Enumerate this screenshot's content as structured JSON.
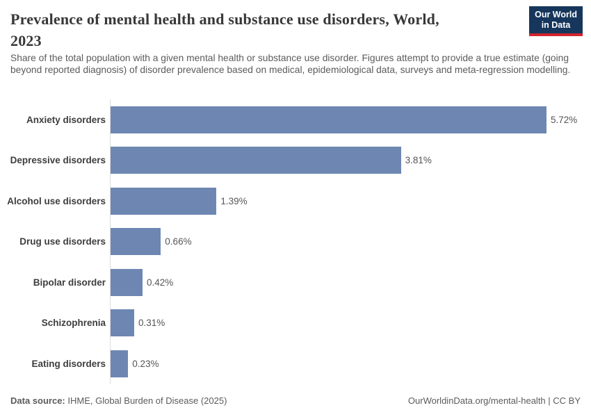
{
  "header": {
    "title_line1": "Prevalence of mental health and substance use disorders, World,",
    "title_line2": "2023",
    "subtitle": "Share of the total population with a given mental health or substance use disorder. Figures attempt to provide a true estimate (going beyond reported diagnosis) of disorder prevalence based on medical, epidemiological data, surveys and meta-regression modelling.",
    "logo": {
      "line1": "Our World",
      "line2": "in Data"
    }
  },
  "chart_data": {
    "type": "bar",
    "orientation": "horizontal",
    "title": "Prevalence of mental health and substance use disorders, World, 2023",
    "categories": [
      "Anxiety disorders",
      "Depressive disorders",
      "Alcohol use disorders",
      "Drug use disorders",
      "Bipolar disorder",
      "Schizophrenia",
      "Eating disorders"
    ],
    "values": [
      5.72,
      3.81,
      1.39,
      0.66,
      0.42,
      0.31,
      0.23
    ],
    "value_labels": [
      "5.72%",
      "3.81%",
      "1.39%",
      "0.66%",
      "0.42%",
      "0.31%",
      "0.23%"
    ],
    "unit": "%",
    "xlabel": "",
    "ylabel": "",
    "xlim": [
      0,
      6.3
    ],
    "grid": false,
    "legend": "none"
  },
  "footer": {
    "datasource_label": "Data source:",
    "datasource_value": " IHME, Global Burden of Disease (2025)",
    "link": "OurWorldinData.org/mental-health | CC BY"
  },
  "colors": {
    "bar": "#6e87b2",
    "axis_line": "#dcdcdc",
    "title_text": "#383838",
    "subtitle_text": "#5b5b5b",
    "category_label": "#3d3d3d",
    "value_label": "#555555",
    "footer_text": "#5b5b5b",
    "logo_background": "#16365c",
    "logo_stripe": "#d1232e",
    "background": "#ffffff"
  }
}
